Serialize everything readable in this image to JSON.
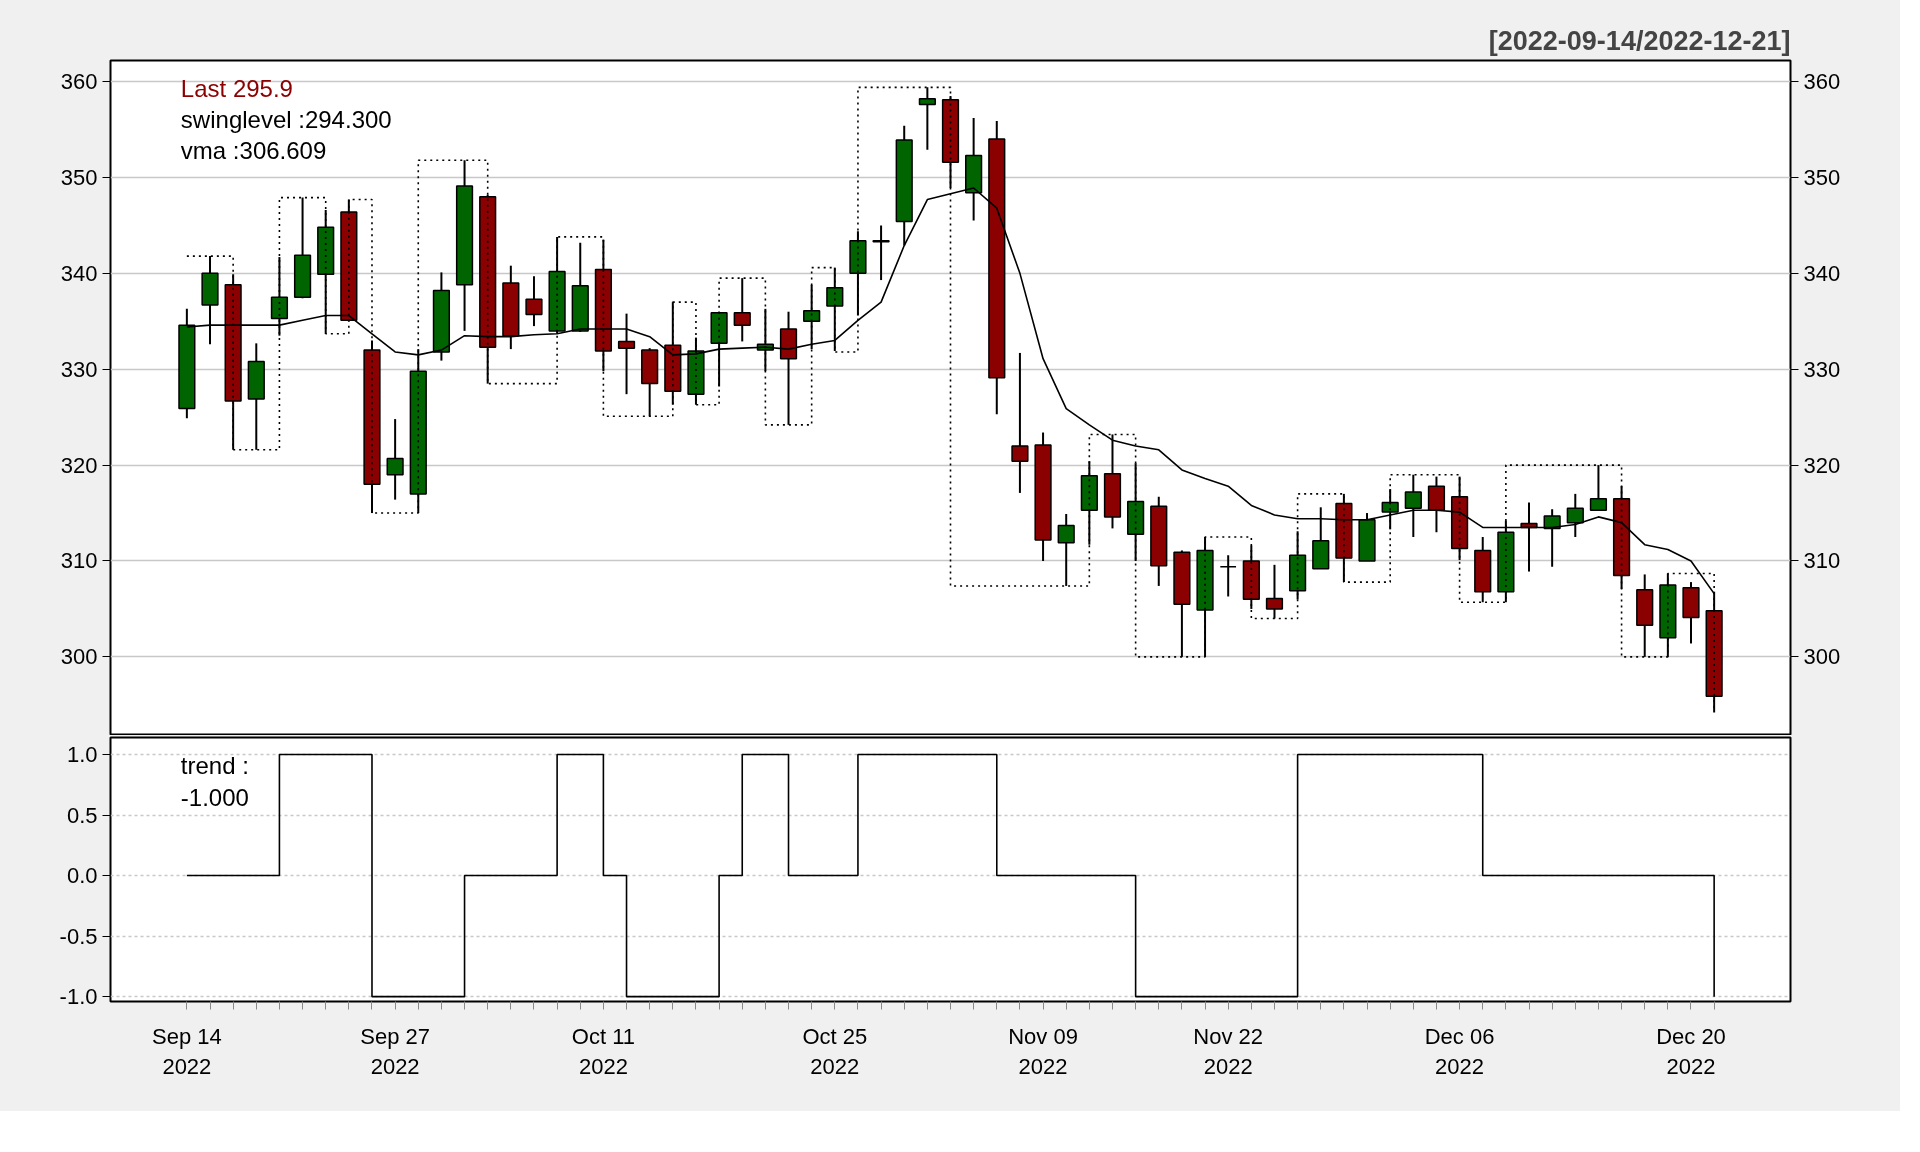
{
  "chart_data": [
    {
      "type": "candlestick",
      "subtitle": "[2022-09-14/2022-12-21]",
      "categories": [
        null,
        null,
        null,
        null,
        null,
        null,
        null,
        null,
        null,
        null,
        null,
        null,
        null,
        null,
        null,
        null,
        null,
        null,
        null,
        null,
        null,
        null,
        null,
        null,
        null,
        null,
        null,
        null,
        null,
        null,
        null,
        null,
        null,
        null,
        null,
        null,
        null,
        null,
        null,
        null,
        null,
        null,
        null,
        null,
        null,
        null,
        null,
        null,
        null,
        null,
        null,
        null,
        null,
        null,
        null,
        null,
        null,
        null,
        null,
        null,
        null,
        null,
        null,
        null,
        null,
        null,
        null
      ],
      "ohlc": [
        [
          325.9,
          336.3,
          324.9,
          334.6
        ],
        [
          336.7,
          341.8,
          332.6,
          340.0
        ],
        [
          338.8,
          339.9,
          321.6,
          326.7
        ],
        [
          326.9,
          332.7,
          321.6,
          330.8
        ],
        [
          335.3,
          341.7,
          333.5,
          337.5
        ],
        [
          337.5,
          347.9,
          337.4,
          341.9
        ],
        [
          339.9,
          346.6,
          333.7,
          344.8
        ],
        [
          346.4,
          347.7,
          335.0,
          335.1
        ],
        [
          332.0,
          333.0,
          315.0,
          318.0
        ],
        [
          319.0,
          324.8,
          316.4,
          320.7
        ],
        [
          317.0,
          332.1,
          315.0,
          329.8
        ],
        [
          331.8,
          340.1,
          330.9,
          338.2
        ],
        [
          338.8,
          351.8,
          334.0,
          349.1
        ],
        [
          348.0,
          348.2,
          328.5,
          332.3
        ],
        [
          339.0,
          340.8,
          332.1,
          333.5
        ],
        [
          337.3,
          339.7,
          334.5,
          335.7
        ],
        [
          334.0,
          343.8,
          333.7,
          340.2
        ],
        [
          334.0,
          343.2,
          333.9,
          338.7
        ],
        [
          340.4,
          343.5,
          329.8,
          331.9
        ],
        [
          332.9,
          335.8,
          327.4,
          332.2
        ],
        [
          332.0,
          332.2,
          325.1,
          328.5
        ],
        [
          332.5,
          337.0,
          326.3,
          327.7
        ],
        [
          327.4,
          333.3,
          326.3,
          331.9
        ],
        [
          332.7,
          336.0,
          328.2,
          335.9
        ],
        [
          335.9,
          339.5,
          332.9,
          334.6
        ],
        [
          332.0,
          336.3,
          329.8,
          332.6
        ],
        [
          334.2,
          336.0,
          324.2,
          331.1
        ],
        [
          335.0,
          338.8,
          332.1,
          336.1
        ],
        [
          336.6,
          340.6,
          331.9,
          338.5
        ],
        [
          340.0,
          344.4,
          335.6,
          343.4
        ],
        [
          343.3,
          345.0,
          339.3,
          343.4
        ],
        [
          345.4,
          355.4,
          342.9,
          353.9
        ],
        [
          357.6,
          359.4,
          352.9,
          358.2
        ],
        [
          358.1,
          358.5,
          348.9,
          351.6
        ],
        [
          348.4,
          356.2,
          345.5,
          352.3
        ],
        [
          354.0,
          355.9,
          325.3,
          329.1
        ],
        [
          322.0,
          331.7,
          317.1,
          320.4
        ],
        [
          322.1,
          323.4,
          310.0,
          312.2
        ],
        [
          311.9,
          314.9,
          307.4,
          313.7
        ],
        [
          315.3,
          320.4,
          311.7,
          318.9
        ],
        [
          319.1,
          323.2,
          313.4,
          314.6
        ],
        [
          312.8,
          320.2,
          310.0,
          316.2
        ],
        [
          315.7,
          316.7,
          307.4,
          309.5
        ],
        [
          310.9,
          311.1,
          300.0,
          305.5
        ],
        [
          304.9,
          312.5,
          300.0,
          311.1
        ],
        [
          309.4,
          310.6,
          306.3,
          309.4
        ],
        [
          310.0,
          311.6,
          305.0,
          306.0
        ],
        [
          306.1,
          309.6,
          304.0,
          305.0
        ],
        [
          306.9,
          313.1,
          306.0,
          310.6
        ],
        [
          309.2,
          315.6,
          309.2,
          312.1
        ],
        [
          316.0,
          317.0,
          307.8,
          310.3
        ],
        [
          310.0,
          315.0,
          310.0,
          314.3
        ],
        [
          315.1,
          317.5,
          313.3,
          316.1
        ],
        [
          315.5,
          319.0,
          312.5,
          317.2
        ],
        [
          317.8,
          318.8,
          313.0,
          315.3
        ],
        [
          316.7,
          318.8,
          310.1,
          311.3
        ],
        [
          311.1,
          312.5,
          305.7,
          306.8
        ],
        [
          306.8,
          314.2,
          305.7,
          313.0
        ],
        [
          313.9,
          316.1,
          308.9,
          313.5
        ],
        [
          313.4,
          315.4,
          309.4,
          314.7
        ],
        [
          314.0,
          317.0,
          312.5,
          315.5
        ],
        [
          315.3,
          320.0,
          315.3,
          316.5
        ],
        [
          316.5,
          317.8,
          307.1,
          308.5
        ],
        [
          307.0,
          308.6,
          300.0,
          303.3
        ],
        [
          302.0,
          308.7,
          300.0,
          307.5
        ],
        [
          307.2,
          307.8,
          301.4,
          304.1
        ],
        [
          304.8,
          306.8,
          294.2,
          295.9
        ]
      ],
      "colors": [
        "#006400",
        "#006400",
        "#8b0000",
        "#006400",
        "#006400",
        "#006400",
        "#006400",
        "#8b0000",
        "#8b0000",
        "#006400",
        "#006400",
        "#006400",
        "#006400",
        "#8b0000",
        "#8b0000",
        "#8b0000",
        "#006400",
        "#006400",
        "#8b0000",
        "#8b0000",
        "#8b0000",
        "#8b0000",
        "#006400",
        "#006400",
        "#8b0000",
        "#006400",
        "#8b0000",
        "#006400",
        "#006400",
        "#006400",
        "#006400",
        "#006400",
        "#006400",
        "#8b0000",
        "#006400",
        "#8b0000",
        "#8b0000",
        "#8b0000",
        "#006400",
        "#006400",
        "#8b0000",
        "#006400",
        "#8b0000",
        "#8b0000",
        "#006400",
        "#000000",
        "#8b0000",
        "#8b0000",
        "#006400",
        "#006400",
        "#8b0000",
        "#006400",
        "#006400",
        "#006400",
        "#8b0000",
        "#8b0000",
        "#8b0000",
        "#006400",
        "#8b0000",
        "#006400",
        "#006400",
        "#006400",
        "#8b0000",
        "#8b0000",
        "#006400",
        "#8b0000",
        "#8b0000"
      ],
      "series": [
        {
          "type": "step",
          "color": "#000000",
          "line_style": "dotted",
          "values": [
            341.8,
            341.8,
            321.6,
            321.6,
            347.9,
            347.9,
            333.7,
            347.7,
            315.0,
            315.0,
            351.8,
            351.8,
            351.8,
            328.5,
            328.5,
            328.5,
            343.8,
            343.8,
            325.1,
            325.1,
            325.1,
            337.0,
            326.3,
            339.5,
            339.5,
            324.2,
            324.2,
            340.6,
            331.8,
            359.4,
            359.4,
            359.4,
            359.4,
            307.4,
            307.4,
            307.4,
            307.4,
            307.4,
            307.4,
            323.2,
            323.2,
            300.0,
            300.0,
            300.0,
            312.5,
            312.5,
            304.0,
            304.0,
            317.0,
            317.0,
            307.8,
            307.8,
            319.0,
            319.0,
            319.0,
            305.7,
            305.7,
            320.0,
            320.0,
            320.0,
            320.0,
            320.0,
            300.0,
            300.0,
            308.7,
            308.7,
            294.3
          ]
        },
        {
          "type": "line",
          "color": "#000000",
          "values": [
            334.4,
            334.6,
            334.6,
            334.6,
            334.6,
            335.1,
            335.6,
            335.6,
            333.7,
            331.8,
            331.5,
            332.0,
            333.5,
            333.4,
            333.4,
            333.6,
            333.7,
            334.2,
            334.2,
            334.2,
            333.4,
            331.5,
            331.6,
            332.1,
            332.2,
            332.3,
            332.1,
            332.6,
            333.0,
            335.1,
            337.0,
            342.9,
            347.7,
            348.3,
            348.9,
            346.8,
            340.0,
            331.1,
            325.9,
            324.2,
            322.6,
            322.0,
            321.6,
            319.5,
            318.6,
            317.8,
            315.8,
            314.8,
            314.4,
            314.4,
            314.3,
            314.3,
            314.8,
            315.3,
            315.3,
            315.1,
            313.5,
            313.5,
            313.5,
            313.5,
            313.8,
            314.6,
            314.0,
            311.7,
            311.2,
            310.0,
            306.6
          ]
        }
      ],
      "ylim": [
        291.8,
        362.2
      ],
      "yticks": [
        300,
        310,
        320,
        330,
        340,
        350,
        360
      ],
      "y2lim": [
        291.8,
        362.2
      ],
      "y2ticks": [
        300,
        310,
        320,
        330,
        340,
        350,
        360
      ],
      "grid": "y",
      "tick_labels": "y",
      "annotations": [
        "Last 295.9",
        "swinglevel :294.300",
        "vma :306.609"
      ]
    },
    {
      "type": "step",
      "categories": [
        "Sep 14\n2022",
        null,
        null,
        null,
        null,
        null,
        null,
        null,
        null,
        "Sep 27\n2022",
        null,
        null,
        null,
        null,
        null,
        null,
        null,
        null,
        "Oct 11\n2022",
        null,
        null,
        null,
        null,
        null,
        null,
        null,
        null,
        null,
        "Oct 25\n2022",
        null,
        null,
        null,
        null,
        null,
        null,
        null,
        null,
        "Nov 09\n2022",
        null,
        null,
        null,
        null,
        null,
        null,
        null,
        "Nov 22\n2022",
        null,
        null,
        null,
        null,
        null,
        null,
        null,
        null,
        null,
        "Dec 06\n2022",
        null,
        null,
        null,
        null,
        null,
        null,
        null,
        null,
        null,
        "Dec 20\n2022",
        null
      ],
      "series": [
        {
          "color": "#000000",
          "values": [
            0,
            0,
            0,
            0,
            1,
            1,
            1,
            1,
            -1,
            -1,
            -1,
            -1,
            0,
            0,
            0,
            0,
            1,
            1,
            0,
            -1,
            -1,
            -1,
            -1,
            0,
            1,
            1,
            0,
            0,
            0,
            1,
            1,
            1,
            1,
            1,
            1,
            0,
            0,
            0,
            0,
            0,
            0,
            -1,
            -1,
            -1,
            -1,
            -1,
            -1,
            -1,
            1,
            1,
            1,
            1,
            1,
            1,
            1,
            1,
            0,
            0,
            0,
            0,
            0,
            0,
            0,
            0,
            0,
            0,
            -1
          ]
        }
      ],
      "ylim": [
        -1.04,
        1.14
      ],
      "yticks": [
        {
          "value": -1,
          "label": "-1.0"
        },
        {
          "value": -0.5,
          "label": "-0.5"
        },
        {
          "value": 0,
          "label": "0.0"
        },
        {
          "value": 0.5,
          "label": "0.5"
        },
        {
          "value": 1,
          "label": "1.0"
        }
      ],
      "grid": "y",
      "annotations": [
        "trend :\n-1.000"
      ]
    }
  ]
}
